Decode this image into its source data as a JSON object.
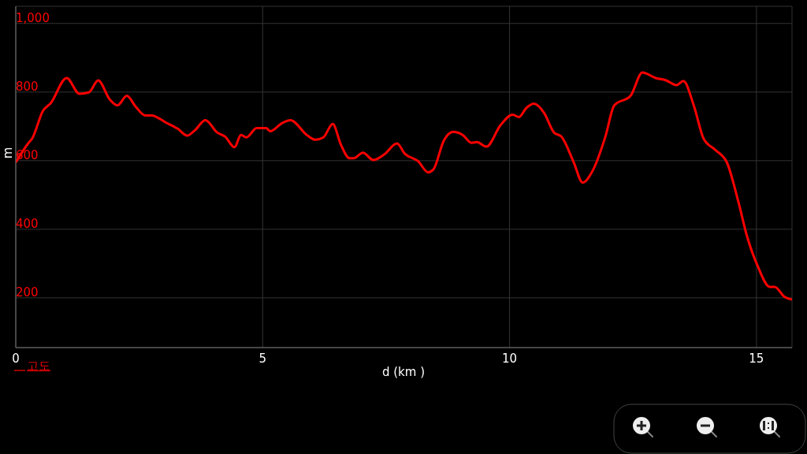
{
  "chart_data": {
    "type": "line",
    "xlabel": "d (km )",
    "ylabel": "m",
    "x": [
      0,
      0.26,
      0.33,
      0.55,
      0.71,
      1.03,
      1.29,
      1.48,
      1.67,
      1.9,
      2.06,
      2.25,
      2.43,
      2.62,
      2.75,
      3.04,
      3.28,
      3.47,
      3.63,
      3.84,
      4.08,
      4.24,
      4.43,
      4.56,
      4.67,
      4.88,
      5.07,
      5.15,
      5.39,
      5.56,
      5.91,
      6.07,
      6.23,
      6.42,
      6.58,
      6.76,
      6.84,
      7.03,
      7.24,
      7.46,
      7.72,
      7.88,
      8.15,
      8.35,
      8.46,
      8.67,
      8.86,
      9.05,
      9.23,
      9.34,
      9.53,
      9.82,
      10.06,
      10.19,
      10.33,
      10.49,
      10.7,
      10.9,
      11.05,
      11.3,
      11.48,
      11.68,
      11.94,
      12.12,
      12.45,
      12.69,
      12.96,
      13.17,
      13.38,
      13.52,
      13.73,
      13.93,
      14.16,
      14.4,
      14.63,
      14.81,
      15.03,
      15.27,
      15.37,
      15.56,
      15.72
    ],
    "series": [
      {
        "name": "고도",
        "color": "#ff0000",
        "values": [
          595,
          652,
          664,
          745,
          768,
          841,
          795,
          799,
          834,
          779,
          761,
          789,
          757,
          732,
          732,
          711,
          693,
          673,
          689,
          718,
          682,
          670,
          639,
          675,
          668,
          695,
          695,
          686,
          709,
          718,
          673,
          661,
          668,
          707,
          648,
          607,
          607,
          623,
          602,
          618,
          650,
          620,
          598,
          566,
          575,
          659,
          684,
          675,
          652,
          654,
          641,
          704,
          734,
          727,
          752,
          766,
          739,
          682,
          670,
          595,
          536,
          570,
          670,
          761,
          789,
          857,
          841,
          834,
          820,
          832,
          761,
          664,
          632,
          595,
          482,
          379,
          291,
          232,
          232,
          204,
          195
        ]
      }
    ],
    "xlim": [
      0,
      15.72
    ],
    "ylim": [
      55,
      1050
    ],
    "xticks": [
      0,
      5,
      10,
      15
    ],
    "yticks": [
      200,
      400,
      600,
      800,
      {
        "value": 1000,
        "label": "1,000"
      }
    ],
    "grid": true,
    "legend": "bottom left",
    "marker": "none",
    "line_style": "solid"
  }
}
